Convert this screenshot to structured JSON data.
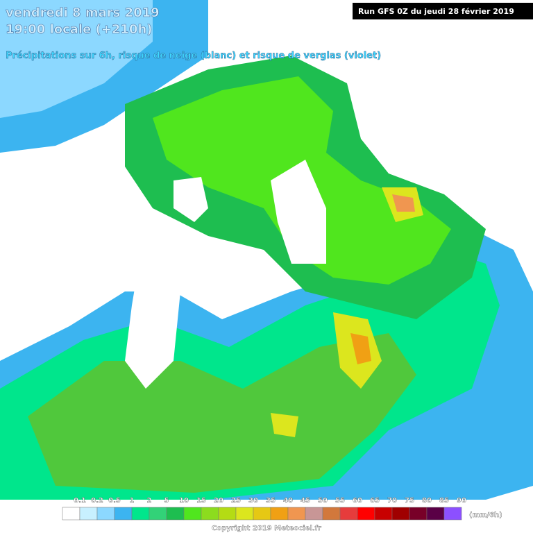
{
  "header": {
    "date": "vendredi 8 mars 2019",
    "time": "19:00 locale (+210h)",
    "subtitle": "Précipitations sur 6h, risque de neige (blanc) et risque de verglas (violet)",
    "run": "Run GFS 0Z du jeudi 28 février 2019"
  },
  "legend": {
    "labels": [
      "0.1",
      "0.2",
      "0.5",
      "1",
      "2",
      "5",
      "10",
      "15",
      "20",
      "25",
      "30",
      "35",
      "40",
      "45",
      "50",
      "55",
      "60",
      "65",
      "70",
      "75",
      "80",
      "85",
      "90"
    ],
    "colors": [
      "#ffffff",
      "#c8f0ff",
      "#8cd8ff",
      "#3cb4f0",
      "#00e68c",
      "#32d278",
      "#1ebe50",
      "#50e61e",
      "#8cdc1e",
      "#b4dc14",
      "#dce61e",
      "#e6c814",
      "#f0a014",
      "#f09650",
      "#c89696",
      "#d2783c",
      "#e63c3c",
      "#ff0000",
      "#c80000",
      "#a00000",
      "#780028",
      "#5a0046",
      "#8c50ff"
    ],
    "unit": "(mm/6h)"
  },
  "footer": {
    "copyright": "Copyright 2019 Meteociel.fr"
  }
}
